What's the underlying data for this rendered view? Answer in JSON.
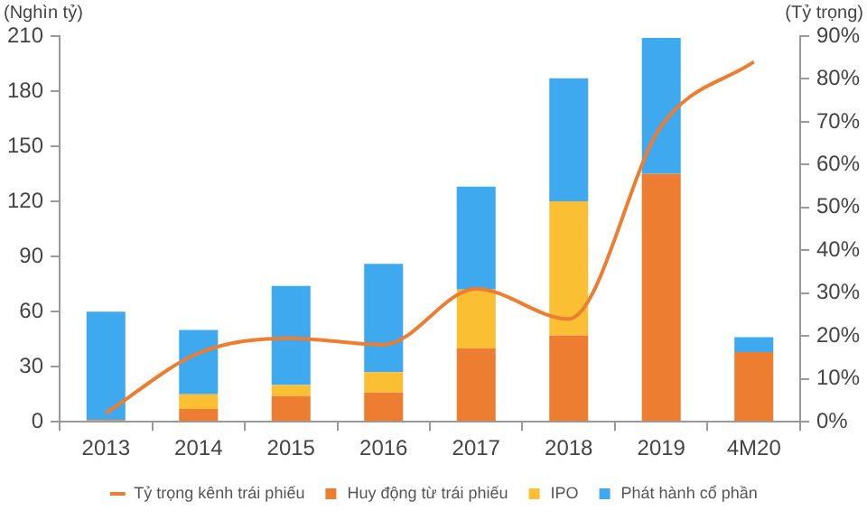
{
  "chart_data": {
    "type": "bar",
    "stacked": true,
    "ylabel": "(Nghìn tỷ)",
    "y2label": "(Tỷ trọng)",
    "categories": [
      "2013",
      "2014",
      "2015",
      "2016",
      "2017",
      "2018",
      "2019",
      "4M20"
    ],
    "series": [
      {
        "name": "Huy động từ trái phiếu",
        "color": "#ed7d31",
        "values": [
          1,
          7,
          14,
          16,
          40,
          47,
          135,
          38
        ]
      },
      {
        "name": "IPO",
        "color": "#fbbf33",
        "values": [
          0,
          8,
          6,
          11,
          32,
          73,
          0,
          0
        ]
      },
      {
        "name": "Phát hành cổ phần",
        "color": "#3fa9f0",
        "values": [
          59,
          35,
          54,
          59,
          56,
          67,
          74,
          8
        ]
      },
      {
        "name": "Tỷ trọng kênh trái phiếu",
        "type": "line",
        "axis": "y2",
        "color": "#ed7d31",
        "values": [
          2,
          16,
          19.5,
          18,
          31,
          24,
          69,
          84
        ]
      }
    ],
    "ylim": [
      0,
      210
    ],
    "yticks": [
      0,
      30,
      60,
      90,
      120,
      150,
      180,
      210
    ],
    "y2lim": [
      0,
      90
    ],
    "y2ticks": [
      {
        "value": 0,
        "label": "0%"
      },
      {
        "value": 10,
        "label": "10%"
      },
      {
        "value": 20,
        "label": "20%"
      },
      {
        "value": 30,
        "label": "30%"
      },
      {
        "value": 40,
        "label": "40%"
      },
      {
        "value": 50,
        "label": "50%"
      },
      {
        "value": 60,
        "label": "60%"
      },
      {
        "value": 70,
        "label": "70%"
      },
      {
        "value": 80,
        "label": "80%"
      },
      {
        "value": 90,
        "label": "90%"
      }
    ],
    "grid": false,
    "legend": "bottom"
  }
}
